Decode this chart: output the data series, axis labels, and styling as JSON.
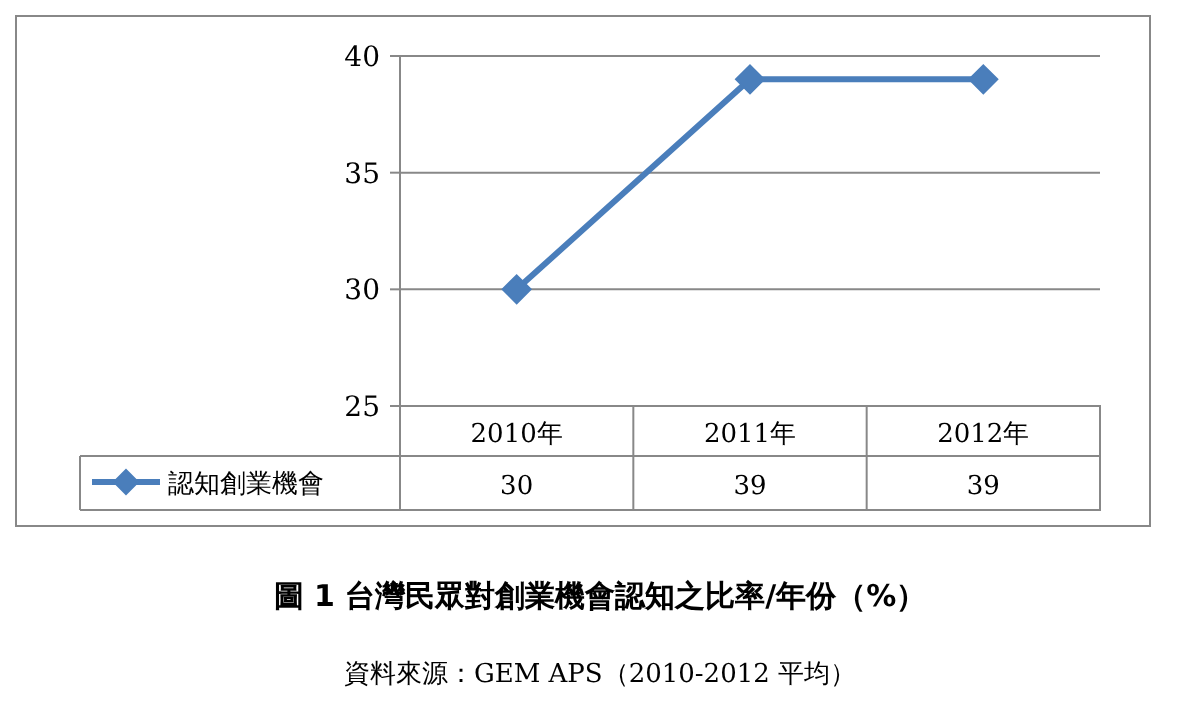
{
  "chart_data": {
    "type": "line",
    "title": "圖 1  台灣民眾對創業機會認知之比率/年份（%）",
    "annotations": [
      "資料來源：GEM APS（2010-2012 平均）"
    ],
    "categories": [
      "2010年",
      "2011年",
      "2012年"
    ],
    "series": [
      {
        "name": "認知創業機會",
        "color": "#4a7ebb",
        "values": [
          30,
          39,
          39
        ]
      }
    ],
    "ylim": [
      25,
      40
    ],
    "yticks": [
      25,
      30,
      35,
      40
    ],
    "grid": "y",
    "marker": "diamond",
    "line_style": "solid",
    "data_labels": true,
    "legend": "bottom left"
  }
}
